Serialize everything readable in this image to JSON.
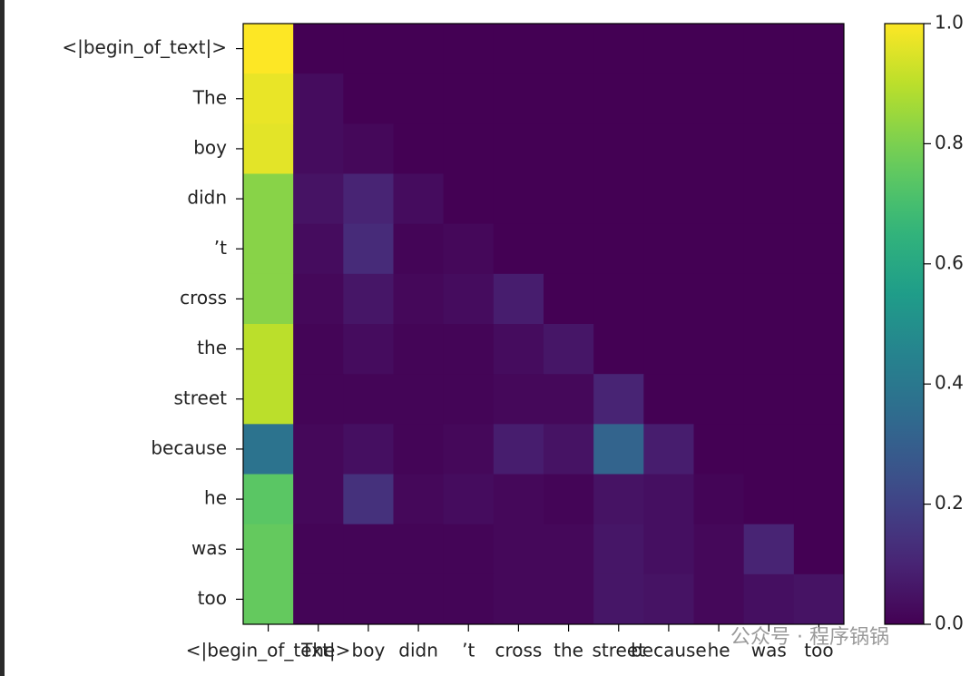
{
  "chart_data": {
    "type": "heatmap",
    "categories": [
      "<|begin_of_text|>",
      "The",
      "boy",
      "didn",
      "’t",
      "cross",
      "the",
      "street",
      "because",
      "he",
      "was",
      "too"
    ],
    "values": [
      [
        1.0,
        0,
        0,
        0,
        0,
        0,
        0,
        0,
        0,
        0,
        0,
        0
      ],
      [
        0.97,
        0.03,
        0,
        0,
        0,
        0,
        0,
        0,
        0,
        0,
        0,
        0
      ],
      [
        0.96,
        0.03,
        0.02,
        0,
        0,
        0,
        0,
        0,
        0,
        0,
        0,
        0
      ],
      [
        0.82,
        0.05,
        0.1,
        0.03,
        0,
        0,
        0,
        0,
        0,
        0,
        0,
        0
      ],
      [
        0.82,
        0.03,
        0.12,
        0.01,
        0.02,
        0,
        0,
        0,
        0,
        0,
        0,
        0
      ],
      [
        0.82,
        0.02,
        0.06,
        0.02,
        0.03,
        0.08,
        0,
        0,
        0,
        0,
        0,
        0
      ],
      [
        0.9,
        0.01,
        0.03,
        0.01,
        0.01,
        0.03,
        0.06,
        0,
        0,
        0,
        0,
        0
      ],
      [
        0.9,
        0.01,
        0.01,
        0.01,
        0.01,
        0.02,
        0.02,
        0.1,
        0,
        0,
        0,
        0
      ],
      [
        0.38,
        0.02,
        0.04,
        0.01,
        0.02,
        0.08,
        0.05,
        0.32,
        0.08,
        0,
        0,
        0
      ],
      [
        0.74,
        0.02,
        0.14,
        0.02,
        0.03,
        0.02,
        0.01,
        0.05,
        0.04,
        0.01,
        0,
        0
      ],
      [
        0.76,
        0.01,
        0.01,
        0.01,
        0.01,
        0.02,
        0.02,
        0.06,
        0.04,
        0.02,
        0.1,
        0
      ],
      [
        0.76,
        0.01,
        0.01,
        0.01,
        0.01,
        0.02,
        0.02,
        0.06,
        0.05,
        0.02,
        0.04,
        0.05
      ]
    ],
    "colormap": "viridis",
    "clim": [
      0,
      1
    ],
    "cticks": [
      {
        "value": 0,
        "label": "0.0"
      },
      {
        "value": 0.2,
        "label": "0.2"
      },
      {
        "value": 0.4,
        "label": "0.4"
      },
      {
        "value": 0.6,
        "label": "0.6"
      },
      {
        "value": 0.8,
        "label": "0.8"
      },
      {
        "value": 1,
        "label": "1.0"
      }
    ],
    "watermark": "公众号 · 程序锅锅"
  }
}
